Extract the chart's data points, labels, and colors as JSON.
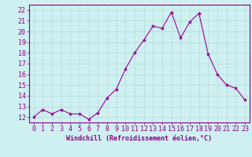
{
  "x": [
    0,
    1,
    2,
    3,
    4,
    5,
    6,
    7,
    8,
    9,
    10,
    11,
    12,
    13,
    14,
    15,
    16,
    17,
    18,
    19,
    20,
    21,
    22,
    23
  ],
  "y": [
    12.0,
    12.7,
    12.3,
    12.7,
    12.3,
    12.3,
    11.8,
    12.4,
    13.8,
    14.6,
    16.5,
    18.0,
    19.2,
    20.5,
    20.3,
    21.8,
    19.4,
    20.9,
    21.7,
    17.9,
    16.0,
    15.0,
    14.7,
    13.6
  ],
  "line_color": "#990099",
  "marker": "*",
  "marker_size": 3,
  "bg_color": "#cff0f0",
  "grid_color": "#b0d8d8",
  "xlabel": "Windchill (Refroidissement éolien,°C)",
  "ylim": [
    11.5,
    22.5
  ],
  "xlim": [
    -0.5,
    23.5
  ],
  "yticks": [
    12,
    13,
    14,
    15,
    16,
    17,
    18,
    19,
    20,
    21,
    22
  ],
  "xticks": [
    0,
    1,
    2,
    3,
    4,
    5,
    6,
    7,
    8,
    9,
    10,
    11,
    12,
    13,
    14,
    15,
    16,
    17,
    18,
    19,
    20,
    21,
    22,
    23
  ],
  "tick_color": "#880088",
  "label_color": "#880088",
  "label_fontsize": 6,
  "tick_fontsize": 6,
  "spine_color": "#880088"
}
